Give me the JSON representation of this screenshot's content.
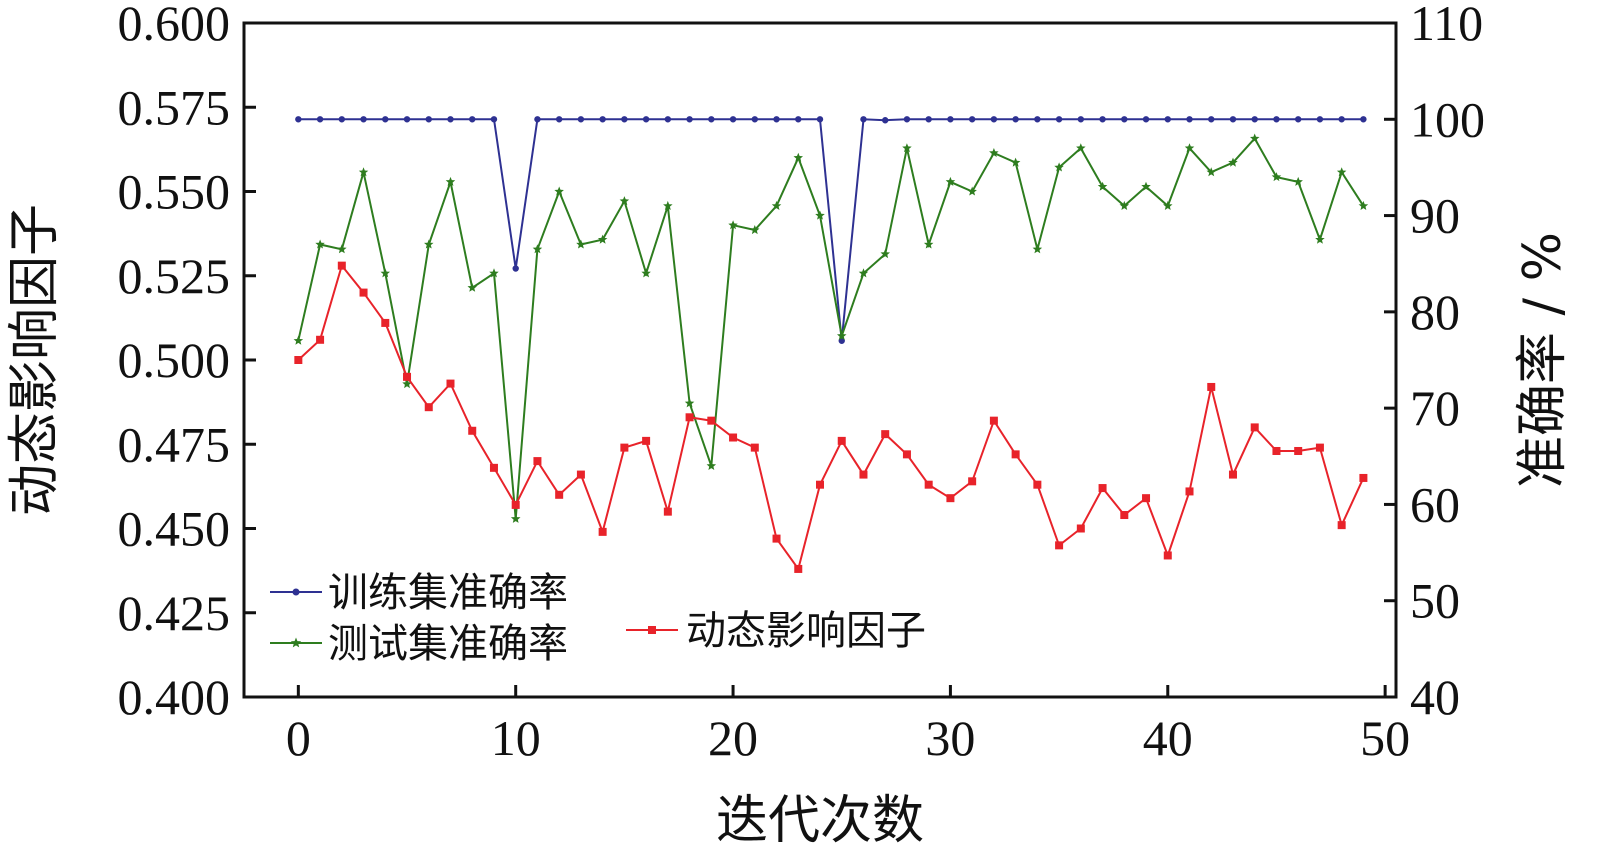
{
  "chart_data": {
    "type": "line",
    "title": "",
    "xlabel": "迭代次数",
    "ylabel_left": "动态影响因子",
    "ylabel_right": "准确率 / %",
    "xlim": [
      -2.5,
      50.5
    ],
    "ylim_left": [
      0.4,
      0.6
    ],
    "ylim_right": [
      40,
      110
    ],
    "x_ticks": [
      0,
      10,
      20,
      30,
      40,
      50
    ],
    "y_left_ticks": [
      "0.400",
      "0.425",
      "0.450",
      "0.475",
      "0.500",
      "0.525",
      "0.550",
      "0.575",
      "0.600"
    ],
    "y_right_ticks": [
      "40",
      "50",
      "60",
      "70",
      "80",
      "90",
      "100",
      "110"
    ],
    "grid": false,
    "legend_position": "bottom-left",
    "x": [
      0,
      1,
      2,
      3,
      4,
      5,
      6,
      7,
      8,
      9,
      10,
      11,
      12,
      13,
      14,
      15,
      16,
      17,
      18,
      19,
      20,
      21,
      22,
      23,
      24,
      25,
      26,
      27,
      28,
      29,
      30,
      31,
      32,
      33,
      34,
      35,
      36,
      37,
      38,
      39,
      40,
      41,
      42,
      43,
      44,
      45,
      46,
      47,
      48,
      49
    ],
    "series": [
      {
        "name": "训练集准确率",
        "axis": "right",
        "color": "#2e3192",
        "marker": "dot",
        "values": [
          100,
          100,
          100,
          100,
          100,
          100,
          100,
          100,
          100,
          100,
          84.5,
          100,
          100,
          100,
          100,
          100,
          100,
          100,
          100,
          100,
          100,
          100,
          100,
          100,
          100,
          77,
          100,
          99.9,
          100,
          100,
          100,
          100,
          100,
          100,
          100,
          100,
          100,
          100,
          100,
          100,
          100,
          100,
          100,
          100,
          100,
          100,
          100,
          100,
          100,
          100
        ]
      },
      {
        "name": "测试集准确率",
        "axis": "right",
        "color": "#2e7d1f",
        "marker": "star",
        "values": [
          77,
          87,
          86.5,
          94.5,
          84,
          72.5,
          87,
          93.5,
          82.5,
          84,
          58.5,
          86.5,
          92.5,
          87,
          87.5,
          91.5,
          84,
          91,
          70.5,
          64,
          89,
          88.5,
          91,
          96,
          90,
          77.5,
          84,
          86,
          97,
          87,
          93.5,
          92.5,
          96.5,
          95.5,
          86.5,
          95,
          97,
          93,
          91,
          93,
          91,
          97,
          94.5,
          95.5,
          98,
          94,
          93.5,
          87.5,
          94.5,
          91
        ]
      },
      {
        "name": "动态影响因子",
        "axis": "left",
        "color": "#e8232a",
        "marker": "square",
        "values": [
          0.5,
          0.506,
          0.528,
          0.52,
          0.511,
          0.495,
          0.486,
          0.493,
          0.479,
          0.468,
          0.457,
          0.47,
          0.46,
          0.466,
          0.449,
          0.474,
          0.476,
          0.455,
          0.483,
          0.482,
          0.477,
          0.474,
          0.447,
          0.438,
          0.463,
          0.476,
          0.466,
          0.478,
          0.472,
          0.463,
          0.459,
          0.464,
          0.482,
          0.472,
          0.463,
          0.445,
          0.45,
          0.462,
          0.454,
          0.459,
          0.442,
          0.461,
          0.492,
          0.466,
          0.48,
          0.473,
          0.473,
          0.474,
          0.451,
          0.465
        ]
      }
    ]
  }
}
